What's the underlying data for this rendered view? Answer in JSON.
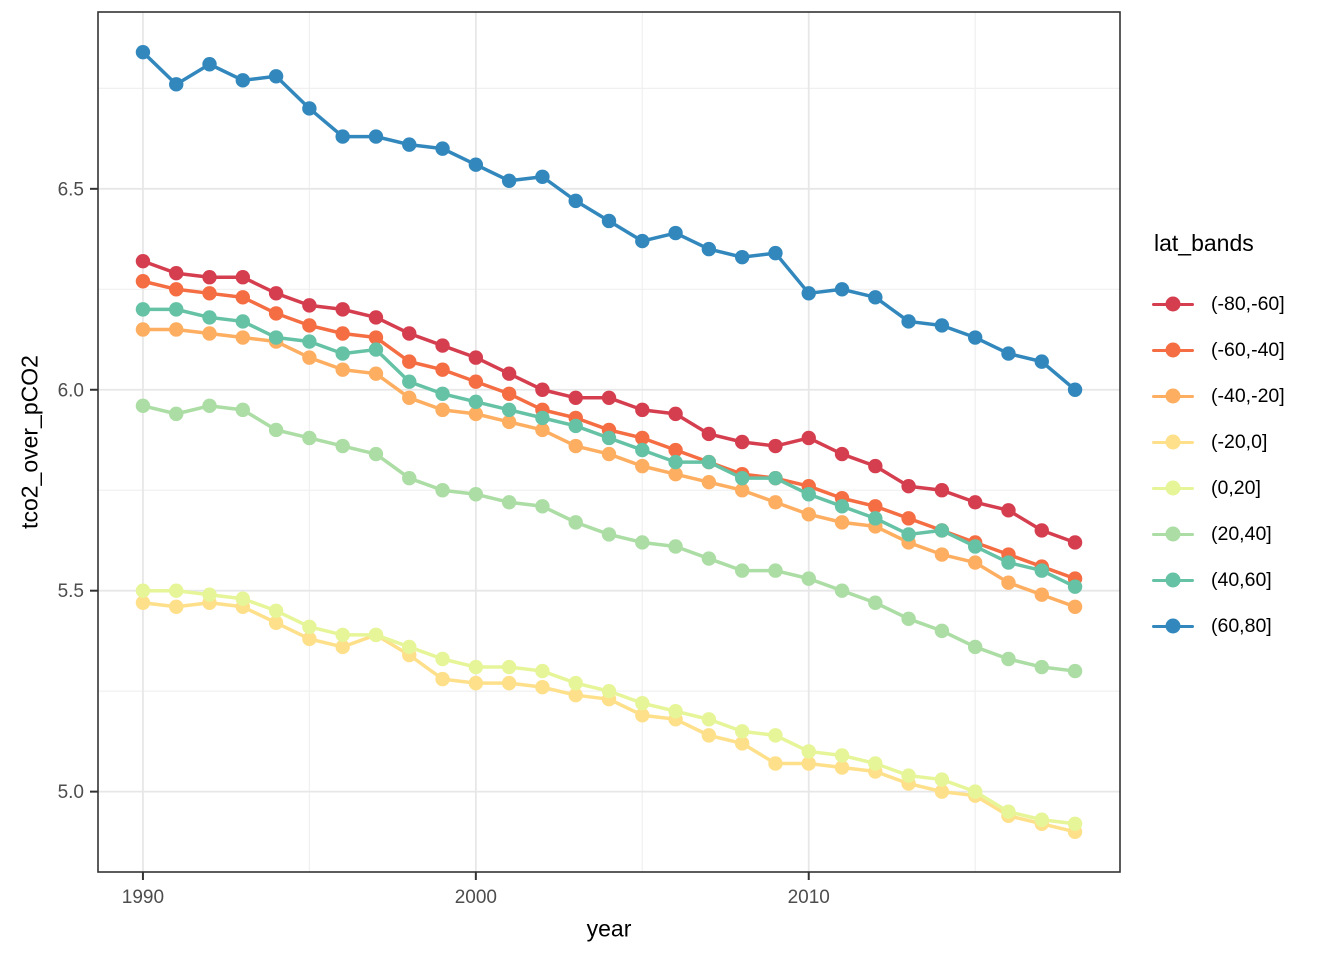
{
  "figure": {
    "background": "#ffffff"
  },
  "chart_data": {
    "type": "line",
    "title": "",
    "xlabel": "year",
    "ylabel": "tco2_over_pCO2",
    "x": [
      1990,
      1991,
      1992,
      1993,
      1994,
      1995,
      1996,
      1997,
      1998,
      1999,
      2000,
      2001,
      2002,
      2003,
      2004,
      2005,
      2006,
      2007,
      2008,
      2009,
      2010,
      2011,
      2012,
      2013,
      2014,
      2015,
      2016,
      2017,
      2018
    ],
    "series": [
      {
        "name": "(-80,-60]",
        "color": "#d53e4f",
        "values": [
          6.32,
          6.29,
          6.28,
          6.28,
          6.24,
          6.21,
          6.2,
          6.18,
          6.14,
          6.11,
          6.08,
          6.04,
          6.0,
          5.98,
          5.98,
          5.95,
          5.94,
          5.89,
          5.87,
          5.86,
          5.88,
          5.84,
          5.81,
          5.76,
          5.75,
          5.72,
          5.7,
          5.65,
          5.62
        ]
      },
      {
        "name": "(-60,-40]",
        "color": "#f46d43",
        "values": [
          6.27,
          6.25,
          6.24,
          6.23,
          6.19,
          6.16,
          6.14,
          6.13,
          6.07,
          6.05,
          6.02,
          5.99,
          5.95,
          5.93,
          5.9,
          5.88,
          5.85,
          5.82,
          5.79,
          5.78,
          5.76,
          5.73,
          5.71,
          5.68,
          5.65,
          5.62,
          5.59,
          5.56,
          5.53
        ]
      },
      {
        "name": "(-40,-20]",
        "color": "#fdae61",
        "values": [
          6.15,
          6.15,
          6.14,
          6.13,
          6.12,
          6.08,
          6.05,
          6.04,
          5.98,
          5.95,
          5.94,
          5.92,
          5.9,
          5.86,
          5.84,
          5.81,
          5.79,
          5.77,
          5.75,
          5.72,
          5.69,
          5.67,
          5.66,
          5.62,
          5.59,
          5.57,
          5.52,
          5.49,
          5.46
        ]
      },
      {
        "name": "(-20,0]",
        "color": "#fee08b",
        "values": [
          5.47,
          5.46,
          5.47,
          5.46,
          5.42,
          5.38,
          5.36,
          5.39,
          5.34,
          5.28,
          5.27,
          5.27,
          5.26,
          5.24,
          5.23,
          5.19,
          5.18,
          5.14,
          5.12,
          5.07,
          5.07,
          5.06,
          5.05,
          5.02,
          5.0,
          4.99,
          4.94,
          4.92,
          4.9
        ]
      },
      {
        "name": "(0,20]",
        "color": "#e6f598",
        "values": [
          5.5,
          5.5,
          5.49,
          5.48,
          5.45,
          5.41,
          5.39,
          5.39,
          5.36,
          5.33,
          5.31,
          5.31,
          5.3,
          5.27,
          5.25,
          5.22,
          5.2,
          5.18,
          5.15,
          5.14,
          5.1,
          5.09,
          5.07,
          5.04,
          5.03,
          5.0,
          4.95,
          4.93,
          4.92
        ]
      },
      {
        "name": "(20,40]",
        "color": "#abdda4",
        "values": [
          5.96,
          5.94,
          5.96,
          5.95,
          5.9,
          5.88,
          5.86,
          5.84,
          5.78,
          5.75,
          5.74,
          5.72,
          5.71,
          5.67,
          5.64,
          5.62,
          5.61,
          5.58,
          5.55,
          5.55,
          5.53,
          5.5,
          5.47,
          5.43,
          5.4,
          5.36,
          5.33,
          5.31,
          5.3
        ]
      },
      {
        "name": "(40,60]",
        "color": "#66c2a5",
        "values": [
          6.2,
          6.2,
          6.18,
          6.17,
          6.13,
          6.12,
          6.09,
          6.1,
          6.02,
          5.99,
          5.97,
          5.95,
          5.93,
          5.91,
          5.88,
          5.85,
          5.82,
          5.82,
          5.78,
          5.78,
          5.74,
          5.71,
          5.68,
          5.64,
          5.65,
          5.61,
          5.57,
          5.55,
          5.51
        ]
      },
      {
        "name": "(60,80]",
        "color": "#3288bd",
        "values": [
          6.84,
          6.76,
          6.81,
          6.77,
          6.78,
          6.7,
          6.63,
          6.63,
          6.61,
          6.6,
          6.56,
          6.52,
          6.53,
          6.47,
          6.42,
          6.37,
          6.39,
          6.35,
          6.33,
          6.34,
          6.24,
          6.25,
          6.23,
          6.17,
          6.16,
          6.13,
          6.09,
          6.07,
          6.0
        ]
      }
    ],
    "x_ticks": {
      "values": [
        1990,
        2000,
        2010
      ],
      "labels": [
        "1990",
        "2000",
        "2010"
      ],
      "minor": [
        1995,
        2005,
        2015
      ]
    },
    "y_ticks": {
      "values": [
        5.0,
        5.5,
        6.0,
        6.5
      ],
      "labels": [
        "5.0",
        "5.5",
        "6.0",
        "6.5"
      ],
      "minor": [
        5.25,
        5.75,
        6.25,
        6.75
      ]
    },
    "xlim": [
      1988.65,
      2019.35
    ],
    "ylim": [
      4.8,
      6.94
    ],
    "grid": true,
    "legend": {
      "title": "lat_bands",
      "position": "right"
    }
  }
}
